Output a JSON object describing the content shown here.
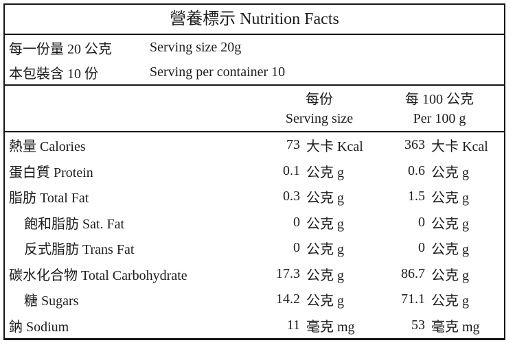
{
  "label": {
    "title": "營養標示 Nutrition Facts",
    "serving_info": [
      {
        "zh": "每一份量 20 公克",
        "en": "Serving size 20g"
      },
      {
        "zh": "本包裝含 10 份",
        "en": "Serving per container 10"
      }
    ],
    "columns": {
      "per_serving_zh": "每份",
      "per_serving_en": "Serving size",
      "per_100g_zh": "每 100 公克",
      "per_100g_en": "Per 100 g"
    },
    "rows": [
      {
        "label": "熱量 Calories",
        "serving_value": "73",
        "serving_unit": "大卡 Kcal",
        "per100_value": "363",
        "per100_unit": "大卡 Kcal"
      },
      {
        "label": "蛋白質 Protein",
        "serving_value": "0.1",
        "serving_unit": "公克 g",
        "per100_value": "0.6",
        "per100_unit": "公克 g"
      },
      {
        "label": "脂肪 Total Fat",
        "serving_value": "0.3",
        "serving_unit": "公克 g",
        "per100_value": "1.5",
        "per100_unit": "公克 g"
      },
      {
        "label": "飽和脂肪 Sat. Fat",
        "serving_value": "0",
        "serving_unit": "公克 g",
        "per100_value": "0",
        "per100_unit": "公克 g"
      },
      {
        "label": "反式脂肪 Trans Fat",
        "serving_value": "0",
        "serving_unit": "公克 g",
        "per100_value": "0",
        "per100_unit": "公克 g"
      },
      {
        "label": "碳水化合物 Total Carbohydrate",
        "serving_value": "17.3",
        "serving_unit": "公克 g",
        "per100_value": "86.7",
        "per100_unit": "公克 g"
      },
      {
        "label": "糖 Sugars",
        "serving_value": "14.2",
        "serving_unit": "公克 g",
        "per100_value": "71.1",
        "per100_unit": "公克 g"
      },
      {
        "label": "鈉 Sodium",
        "serving_value": "11",
        "serving_unit": "毫克 mg",
        "per100_value": "53",
        "per100_unit": "毫克 mg"
      }
    ],
    "colors": {
      "border": "#151515",
      "text": "#1c1c1c",
      "background": "#ffffff"
    }
  }
}
